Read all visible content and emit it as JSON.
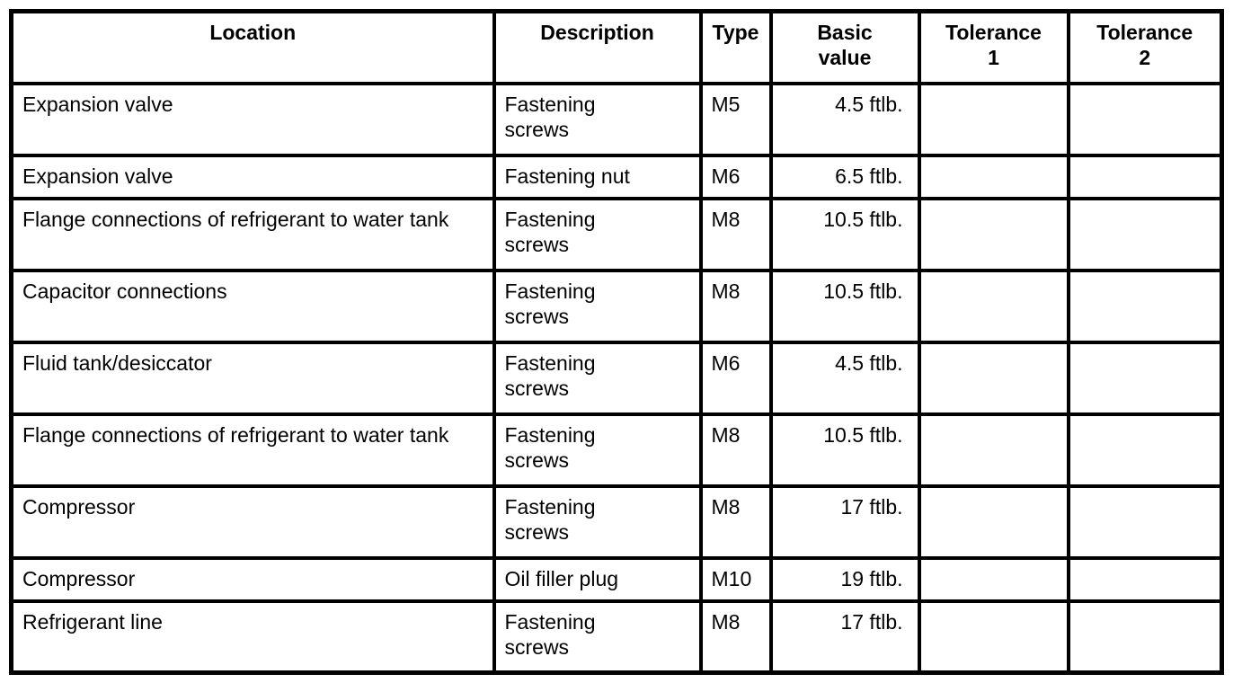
{
  "table": {
    "columns": [
      "Location",
      "Description",
      "Type",
      "Basic\nvalue",
      "Tolerance\n1",
      "Tolerance\n2"
    ],
    "rows": [
      {
        "location": "Expansion valve",
        "description": "Fastening\nscrews",
        "type": "M5",
        "basic_value": "4.5 ftlb.",
        "tolerance_1": "",
        "tolerance_2": ""
      },
      {
        "location": "Expansion valve",
        "description": "Fastening nut",
        "type": "M6",
        "basic_value": "6.5 ftlb.",
        "tolerance_1": "",
        "tolerance_2": ""
      },
      {
        "location": "Flange connections of refrigerant to water tank",
        "description": "Fastening\nscrews",
        "type": "M8",
        "basic_value": "10.5 ftlb.",
        "tolerance_1": "",
        "tolerance_2": ""
      },
      {
        "location": "Capacitor connections",
        "description": "Fastening\nscrews",
        "type": "M8",
        "basic_value": "10.5 ftlb.",
        "tolerance_1": "",
        "tolerance_2": ""
      },
      {
        "location": "Fluid tank/desiccator",
        "description": "Fastening\nscrews",
        "type": "M6",
        "basic_value": "4.5 ftlb.",
        "tolerance_1": "",
        "tolerance_2": ""
      },
      {
        "location": "Flange connections of refrigerant to water tank",
        "description": "Fastening\nscrews",
        "type": "M8",
        "basic_value": "10.5 ftlb.",
        "tolerance_1": "",
        "tolerance_2": ""
      },
      {
        "location": "Compressor",
        "description": "Fastening\nscrews",
        "type": "M8",
        "basic_value": "17 ftlb.",
        "tolerance_1": "",
        "tolerance_2": ""
      },
      {
        "location": "Compressor",
        "description": "Oil filler plug",
        "type": "M10",
        "basic_value": "19 ftlb.",
        "tolerance_1": "",
        "tolerance_2": ""
      },
      {
        "location": "Refrigerant line",
        "description": "Fastening\nscrews",
        "type": "M8",
        "basic_value": "17 ftlb.",
        "tolerance_1": "",
        "tolerance_2": ""
      }
    ],
    "colors": {
      "border": "#000000",
      "background": "#ffffff",
      "text": "#000000"
    }
  }
}
